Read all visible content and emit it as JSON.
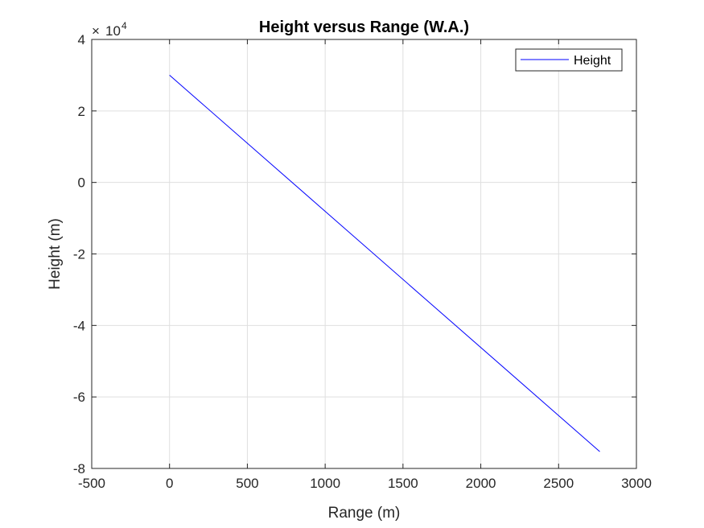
{
  "chart_data": {
    "type": "line",
    "title": "Height versus Range (W.A.)",
    "xlabel": "Range (m)",
    "ylabel": "Height (m)",
    "xlim": [
      -500,
      3000
    ],
    "ylim": [
      -80000,
      40000
    ],
    "xticks": [
      -500,
      0,
      500,
      1000,
      1500,
      2000,
      2500,
      3000
    ],
    "xtick_labels": [
      "-500",
      "0",
      "500",
      "1000",
      "1500",
      "2000",
      "2500",
      "3000"
    ],
    "yticks": [
      -80000,
      -60000,
      -40000,
      -20000,
      0,
      20000,
      40000
    ],
    "ytick_labels": [
      "-8",
      "-6",
      "-4",
      "-2",
      "0",
      "2",
      "4"
    ],
    "y_exponent_base": "10",
    "y_exponent_power": "4",
    "grid": true,
    "legend_position": "top-right",
    "series": [
      {
        "name": "Height",
        "color": "#0000ff",
        "x": [
          0,
          2765
        ],
        "y": [
          30000,
          -75300
        ]
      }
    ]
  }
}
